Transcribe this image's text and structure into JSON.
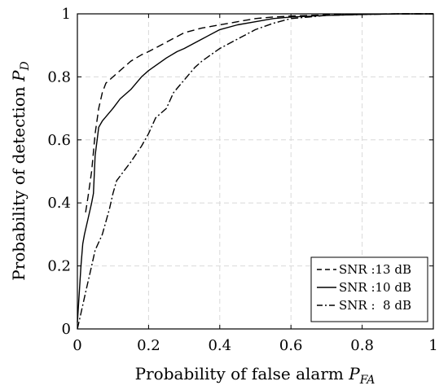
{
  "chart_data": {
    "type": "line",
    "title": "",
    "xlabel_text": "Probability of false alarm",
    "xlabel_symbol": "P",
    "xlabel_sub": "FA",
    "ylabel_text": "Probability of detection",
    "ylabel_symbol": "P",
    "ylabel_sub": "D",
    "xlim": [
      0,
      1
    ],
    "ylim": [
      0,
      1
    ],
    "xticks": [
      0,
      0.2,
      0.4,
      0.6,
      0.8,
      1
    ],
    "yticks": [
      0,
      0.2,
      0.4,
      0.6,
      0.8,
      1
    ],
    "xtick_labels": [
      "0",
      "0.2",
      "0.4",
      "0.6",
      "0.8",
      "1"
    ],
    "ytick_labels": [
      "0",
      "0.2",
      "0.4",
      "0.6",
      "0.8",
      "1"
    ],
    "grid": true,
    "legend_position": "bottom-right",
    "series": [
      {
        "name": "SNR :13 dB",
        "style": "dashed",
        "points": [
          [
            0.023,
            0.37
          ],
          [
            0.03,
            0.42
          ],
          [
            0.04,
            0.5
          ],
          [
            0.05,
            0.62
          ],
          [
            0.06,
            0.7
          ],
          [
            0.07,
            0.75
          ],
          [
            0.08,
            0.78
          ],
          [
            0.1,
            0.8
          ],
          [
            0.12,
            0.82
          ],
          [
            0.15,
            0.85
          ],
          [
            0.18,
            0.87
          ],
          [
            0.2,
            0.88
          ],
          [
            0.25,
            0.91
          ],
          [
            0.3,
            0.94
          ],
          [
            0.35,
            0.955
          ],
          [
            0.4,
            0.965
          ],
          [
            0.45,
            0.975
          ],
          [
            0.5,
            0.985
          ],
          [
            0.55,
            0.99
          ],
          [
            0.6,
            0.993
          ],
          [
            0.7,
            0.997
          ],
          [
            0.8,
            0.999
          ],
          [
            0.9,
            1.0
          ],
          [
            1.0,
            1.0
          ]
        ]
      },
      {
        "name": "SNR :10 dB",
        "style": "solid",
        "points": [
          [
            0.0,
            0.02
          ],
          [
            0.01,
            0.2
          ],
          [
            0.015,
            0.27
          ],
          [
            0.02,
            0.3
          ],
          [
            0.03,
            0.35
          ],
          [
            0.04,
            0.4
          ],
          [
            0.045,
            0.43
          ],
          [
            0.05,
            0.55
          ],
          [
            0.06,
            0.64
          ],
          [
            0.07,
            0.66
          ],
          [
            0.1,
            0.7
          ],
          [
            0.12,
            0.73
          ],
          [
            0.15,
            0.76
          ],
          [
            0.18,
            0.8
          ],
          [
            0.2,
            0.82
          ],
          [
            0.25,
            0.86
          ],
          [
            0.28,
            0.88
          ],
          [
            0.3,
            0.89
          ],
          [
            0.35,
            0.92
          ],
          [
            0.4,
            0.95
          ],
          [
            0.45,
            0.965
          ],
          [
            0.5,
            0.975
          ],
          [
            0.55,
            0.985
          ],
          [
            0.6,
            0.99
          ],
          [
            0.7,
            0.995
          ],
          [
            0.8,
            0.998
          ],
          [
            0.9,
            1.0
          ],
          [
            1.0,
            1.0
          ]
        ]
      },
      {
        "name": "SNR :  8 dB",
        "style": "dashdot",
        "points": [
          [
            0.0,
            0.0
          ],
          [
            0.01,
            0.05
          ],
          [
            0.02,
            0.1
          ],
          [
            0.03,
            0.15
          ],
          [
            0.04,
            0.2
          ],
          [
            0.05,
            0.25
          ],
          [
            0.07,
            0.3
          ],
          [
            0.09,
            0.38
          ],
          [
            0.1,
            0.43
          ],
          [
            0.11,
            0.47
          ],
          [
            0.13,
            0.5
          ],
          [
            0.15,
            0.53
          ],
          [
            0.18,
            0.58
          ],
          [
            0.2,
            0.62
          ],
          [
            0.22,
            0.67
          ],
          [
            0.25,
            0.7
          ],
          [
            0.27,
            0.75
          ],
          [
            0.3,
            0.79
          ],
          [
            0.33,
            0.83
          ],
          [
            0.35,
            0.85
          ],
          [
            0.4,
            0.89
          ],
          [
            0.45,
            0.92
          ],
          [
            0.5,
            0.95
          ],
          [
            0.55,
            0.97
          ],
          [
            0.6,
            0.985
          ],
          [
            0.65,
            0.99
          ],
          [
            0.7,
            0.995
          ],
          [
            0.8,
            0.998
          ],
          [
            0.9,
            1.0
          ],
          [
            1.0,
            1.0
          ]
        ]
      }
    ]
  }
}
